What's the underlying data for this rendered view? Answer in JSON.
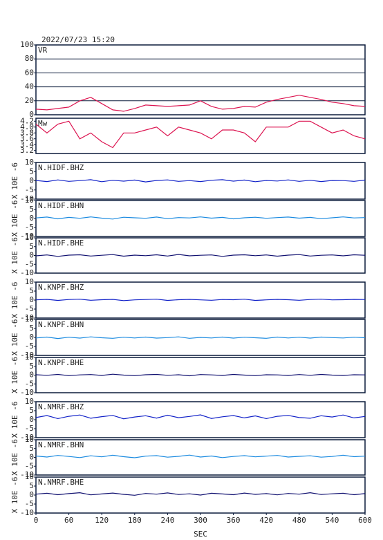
{
  "chart_data": [
    {
      "type": "line",
      "title": "2022/07/23 15:20",
      "x": [
        0,
        20,
        40,
        60,
        80,
        100,
        120,
        140,
        160,
        180,
        200,
        220,
        240,
        260,
        280,
        300,
        320,
        340,
        360,
        380,
        400,
        420,
        440,
        460,
        480,
        500,
        520,
        540,
        560,
        580,
        600
      ],
      "xlim": [
        0,
        600
      ],
      "ylim": [
        0,
        100
      ],
      "yticks": [
        0,
        20,
        40,
        60,
        80,
        100
      ],
      "grid": true,
      "series": [
        {
          "name": "VR",
          "color": "#dc1450",
          "values": [
            8,
            7,
            9,
            11,
            20,
            25,
            16,
            7,
            5,
            9,
            14,
            13,
            12,
            13,
            14,
            20,
            12,
            8,
            9,
            12,
            11,
            18,
            22,
            25,
            28,
            25,
            22,
            18,
            16,
            13,
            12
          ]
        }
      ]
    },
    {
      "type": "line",
      "x": [
        0,
        20,
        40,
        60,
        80,
        100,
        120,
        140,
        160,
        180,
        200,
        220,
        240,
        260,
        280,
        300,
        320,
        340,
        360,
        380,
        400,
        420,
        440,
        460,
        480,
        500,
        520,
        540,
        560,
        580,
        600
      ],
      "xlim": [
        0,
        600
      ],
      "ylim": [
        3.1,
        4.3
      ],
      "yticks": [
        3.2,
        3.4,
        3.6,
        3.8,
        {
          "value": 4,
          "label": "4.0"
        },
        4.2
      ],
      "grid": false,
      "series": [
        {
          "name": "Mw",
          "color": "#dc1450",
          "values": [
            4.1,
            3.8,
            4.1,
            4.2,
            3.6,
            3.8,
            3.5,
            3.3,
            3.8,
            3.8,
            3.9,
            4.0,
            3.7,
            4.0,
            3.9,
            3.8,
            3.6,
            3.9,
            3.9,
            3.8,
            3.5,
            4.0,
            4.0,
            4.0,
            4.2,
            4.2,
            4.0,
            3.8,
            3.9,
            3.7,
            3.6
          ]
        }
      ]
    },
    {
      "type": "line",
      "ylabel": "X 10E -6",
      "x": [
        0,
        20,
        40,
        60,
        80,
        100,
        120,
        140,
        160,
        180,
        200,
        220,
        240,
        260,
        280,
        300,
        320,
        340,
        360,
        380,
        400,
        420,
        440,
        460,
        480,
        500,
        520,
        540,
        560,
        580,
        600
      ],
      "xlim": [
        0,
        600
      ],
      "ylim": [
        -10,
        10
      ],
      "yticks": [
        -10,
        -5,
        0,
        5,
        10
      ],
      "grid": false,
      "series": [
        {
          "name": "N.HIDF.BHZ",
          "color": "#1020c8",
          "values": [
            0.2,
            -0.4,
            0.5,
            -0.3,
            0.1,
            0.6,
            -0.5,
            0.3,
            -0.2,
            0.4,
            -0.6,
            0.2,
            0.5,
            -0.3,
            0.1,
            -0.4,
            0.3,
            0.6,
            -0.2,
            0.4,
            -0.5,
            0.2,
            -0.1,
            0.5,
            -0.3,
            0.3,
            -0.4,
            0.2,
            0.1,
            -0.3,
            0.4
          ]
        }
      ]
    },
    {
      "type": "line",
      "ylabel": "X 10E -6",
      "x": [
        0,
        20,
        40,
        60,
        80,
        100,
        120,
        140,
        160,
        180,
        200,
        220,
        240,
        260,
        280,
        300,
        320,
        340,
        360,
        380,
        400,
        420,
        440,
        460,
        480,
        500,
        520,
        540,
        560,
        580,
        600
      ],
      "xlim": [
        0,
        600
      ],
      "ylim": [
        -10,
        10
      ],
      "yticks": [
        -10,
        -5,
        0,
        5,
        10
      ],
      "grid": false,
      "series": [
        {
          "name": "N.HIDF.BHN",
          "color": "#1a8ae0",
          "values": [
            0.3,
            0.8,
            -0.2,
            0.6,
            0.1,
            0.9,
            0.2,
            -0.3,
            0.7,
            0.4,
            0.1,
            0.8,
            -0.1,
            0.5,
            0.3,
            0.9,
            0.2,
            0.6,
            -0.2,
            0.4,
            0.7,
            0.1,
            0.5,
            0.8,
            0.2,
            0.6,
            -0.1,
            0.4,
            0.9,
            0.3,
            0.5
          ]
        }
      ]
    },
    {
      "type": "line",
      "ylabel": "X 10E -6",
      "x": [
        0,
        20,
        40,
        60,
        80,
        100,
        120,
        140,
        160,
        180,
        200,
        220,
        240,
        260,
        280,
        300,
        320,
        340,
        360,
        380,
        400,
        420,
        440,
        460,
        480,
        500,
        520,
        540,
        560,
        580,
        600
      ],
      "xlim": [
        0,
        600
      ],
      "ylim": [
        -10,
        10
      ],
      "yticks": [
        -10,
        -5,
        0,
        5,
        10
      ],
      "grid": false,
      "series": [
        {
          "name": "N.HIDF.BHE",
          "color": "#101070",
          "values": [
            -0.2,
            0.3,
            -0.5,
            0.2,
            0.4,
            -0.3,
            0.1,
            0.5,
            -0.4,
            0.2,
            -0.1,
            0.4,
            -0.3,
            0.6,
            -0.2,
            0.1,
            0.3,
            -0.5,
            0.2,
            0.4,
            -0.1,
            0.3,
            -0.4,
            0.2,
            0.5,
            -0.3,
            0.1,
            0.3,
            -0.2,
            0.4,
            0.1
          ]
        }
      ]
    },
    {
      "type": "line",
      "ylabel": "X 10E -6",
      "x": [
        0,
        20,
        40,
        60,
        80,
        100,
        120,
        140,
        160,
        180,
        200,
        220,
        240,
        260,
        280,
        300,
        320,
        340,
        360,
        380,
        400,
        420,
        440,
        460,
        480,
        500,
        520,
        540,
        560,
        580,
        600
      ],
      "xlim": [
        0,
        600
      ],
      "ylim": [
        -10,
        10
      ],
      "yticks": [
        -10,
        -5,
        0,
        5,
        10
      ],
      "grid": false,
      "series": [
        {
          "name": "N.KNPF.BHZ",
          "color": "#1020c8",
          "values": [
            0.1,
            0.4,
            -0.2,
            0.3,
            0.5,
            -0.1,
            0.2,
            0.4,
            -0.3,
            0.1,
            0.3,
            0.5,
            -0.2,
            0.2,
            0.4,
            0.1,
            -0.1,
            0.3,
            0.2,
            0.5,
            -0.2,
            0.1,
            0.4,
            0.2,
            -0.1,
            0.3,
            0.5,
            0.1,
            0.2,
            0.4,
            0.3
          ]
        }
      ]
    },
    {
      "type": "line",
      "ylabel": "X 10E -6",
      "x": [
        0,
        20,
        40,
        60,
        80,
        100,
        120,
        140,
        160,
        180,
        200,
        220,
        240,
        260,
        280,
        300,
        320,
        340,
        360,
        380,
        400,
        420,
        440,
        460,
        480,
        500,
        520,
        540,
        560,
        580,
        600
      ],
      "xlim": [
        0,
        600
      ],
      "ylim": [
        -10,
        10
      ],
      "yticks": [
        -10,
        -5,
        0,
        5,
        10
      ],
      "grid": false,
      "series": [
        {
          "name": "N.KNPF.BHN",
          "color": "#1a8ae0",
          "values": [
            -0.3,
            0.2,
            -0.6,
            0.1,
            -0.4,
            0.3,
            -0.2,
            -0.5,
            0.1,
            -0.3,
            0.2,
            -0.4,
            -0.1,
            0.3,
            -0.5,
            0.0,
            -0.3,
            0.2,
            -0.4,
            0.1,
            -0.2,
            -0.5,
            0.2,
            -0.3,
            0.1,
            -0.4,
            0.2,
            -0.1,
            -0.3,
            0.1,
            -0.2
          ]
        }
      ]
    },
    {
      "type": "line",
      "ylabel": "X 10E -6",
      "x": [
        0,
        20,
        40,
        60,
        80,
        100,
        120,
        140,
        160,
        180,
        200,
        220,
        240,
        260,
        280,
        300,
        320,
        340,
        360,
        380,
        400,
        420,
        440,
        460,
        480,
        500,
        520,
        540,
        560,
        580,
        600
      ],
      "xlim": [
        0,
        600
      ],
      "ylim": [
        -10,
        10
      ],
      "yticks": [
        -10,
        -5,
        0,
        5,
        10
      ],
      "grid": false,
      "series": [
        {
          "name": "N.KNPF.BHE",
          "color": "#101070",
          "values": [
            0.2,
            -0.1,
            0.4,
            -0.3,
            0.1,
            0.3,
            -0.2,
            0.5,
            0.0,
            -0.3,
            0.2,
            0.4,
            -0.1,
            0.2,
            -0.4,
            0.3,
            0.1,
            -0.2,
            0.4,
            0.0,
            -0.3,
            0.2,
            0.1,
            -0.2,
            0.3,
            -0.1,
            0.4,
            0.0,
            -0.2,
            0.2,
            0.1
          ]
        }
      ]
    },
    {
      "type": "line",
      "ylabel": "X 10E -6",
      "x": [
        0,
        20,
        40,
        60,
        80,
        100,
        120,
        140,
        160,
        180,
        200,
        220,
        240,
        260,
        280,
        300,
        320,
        340,
        360,
        380,
        400,
        420,
        440,
        460,
        480,
        500,
        520,
        540,
        560,
        580,
        600
      ],
      "xlim": [
        0,
        600
      ],
      "ylim": [
        -10,
        10
      ],
      "yticks": [
        -10,
        -5,
        0,
        5,
        10
      ],
      "grid": false,
      "series": [
        {
          "name": "N.NMRF.BHZ",
          "color": "#1020c8",
          "values": [
            1.2,
            2.3,
            0.6,
            1.9,
            2.6,
            0.8,
            1.7,
            2.4,
            0.5,
            1.5,
            2.2,
            0.9,
            2.5,
            1.1,
            1.8,
            2.7,
            0.7,
            1.6,
            2.3,
            1.0,
            2.1,
            0.6,
            1.9,
            2.4,
            1.2,
            0.8,
            2.2,
            1.5,
            2.6,
            1.0,
            1.8
          ]
        }
      ]
    },
    {
      "type": "line",
      "ylabel": "X 10E -6",
      "x": [
        0,
        20,
        40,
        60,
        80,
        100,
        120,
        140,
        160,
        180,
        200,
        220,
        240,
        260,
        280,
        300,
        320,
        340,
        360,
        380,
        400,
        420,
        440,
        460,
        480,
        500,
        520,
        540,
        560,
        580,
        600
      ],
      "xlim": [
        0,
        600
      ],
      "ylim": [
        -10,
        10
      ],
      "yticks": [
        -10,
        -5,
        0,
        5,
        10
      ],
      "grid": false,
      "series": [
        {
          "name": "N.NMRF.BHN",
          "color": "#1a8ae0",
          "values": [
            0.8,
            0.2,
            1.1,
            0.5,
            -0.1,
            0.9,
            0.3,
            1.2,
            0.4,
            -0.2,
            0.7,
            1.0,
            0.1,
            0.6,
            1.3,
            0.2,
            0.8,
            -0.1,
            0.5,
            1.0,
            0.3,
            0.7,
            1.1,
            0.2,
            0.6,
            0.9,
            0.1,
            0.5,
            1.2,
            0.4,
            0.7
          ]
        }
      ]
    },
    {
      "type": "line",
      "ylabel": "X 10E -6",
      "xlabel": "SEC",
      "x": [
        0,
        20,
        40,
        60,
        80,
        100,
        120,
        140,
        160,
        180,
        200,
        220,
        240,
        260,
        280,
        300,
        320,
        340,
        360,
        380,
        400,
        420,
        440,
        460,
        480,
        500,
        520,
        540,
        560,
        580,
        600
      ],
      "xlim": [
        0,
        600
      ],
      "ylim": [
        -10,
        10
      ],
      "yticks": [
        -10,
        -5,
        0,
        5,
        10
      ],
      "xticks": [
        0,
        60,
        120,
        180,
        240,
        300,
        360,
        420,
        480,
        540,
        600
      ],
      "grid": false,
      "series": [
        {
          "name": "N.NMRF.BHE",
          "color": "#101070",
          "values": [
            0.5,
            1.0,
            0.2,
            0.8,
            1.3,
            0.1,
            0.6,
            1.1,
            0.4,
            -0.1,
            0.9,
            0.5,
            1.2,
            0.3,
            0.7,
            0.0,
            1.0,
            0.6,
            0.2,
            1.1,
            0.4,
            0.8,
            0.1,
            0.9,
            0.5,
            1.3,
            0.3,
            0.7,
            1.0,
            0.2,
            0.8
          ]
        }
      ]
    }
  ]
}
